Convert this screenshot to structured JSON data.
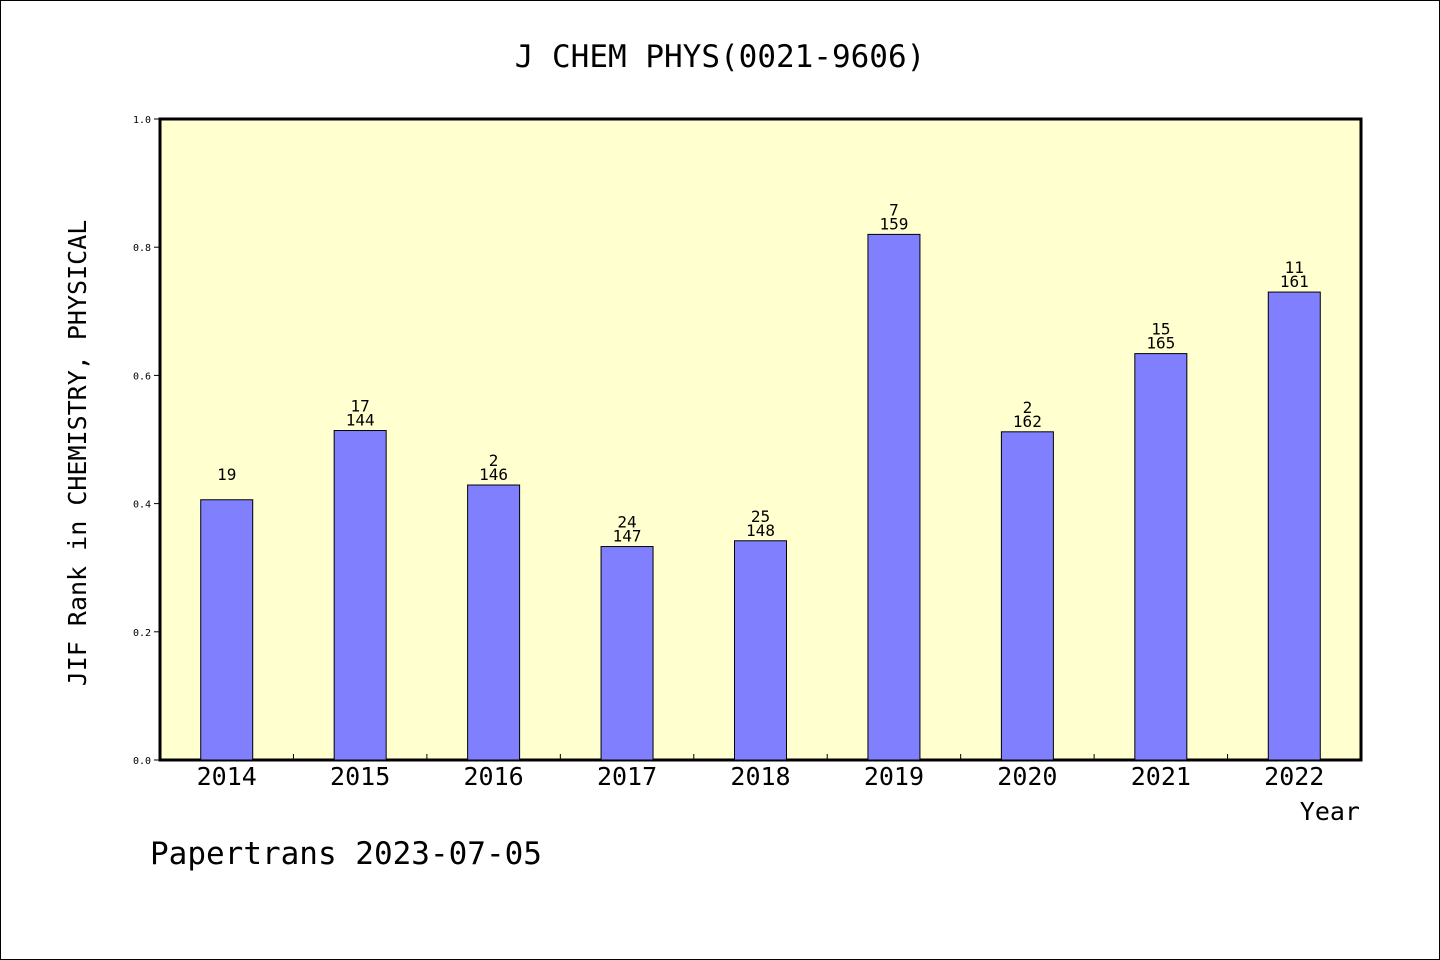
{
  "chart_data": {
    "type": "bar",
    "title": "J CHEM PHYS(0021-9606)",
    "xlabel": "Year",
    "ylabel": "JIF Rank in CHEMISTRY, PHYSICAL",
    "ylim": [
      0.0,
      1.0
    ],
    "yticks": [
      "0.0",
      "0.2",
      "0.4",
      "0.6",
      "0.8",
      "1.0"
    ],
    "categories": [
      "2014",
      "2015",
      "2016",
      "2017",
      "2018",
      "2019",
      "2020",
      "2021",
      "2022"
    ],
    "values": [
      0.406,
      0.514,
      0.429,
      0.333,
      0.342,
      0.82,
      0.512,
      0.634,
      0.73
    ],
    "annotations": [
      {
        "rank": "19",
        "total": ""
      },
      {
        "rank": "17",
        "total": "144"
      },
      {
        "rank": "2",
        "total": "146"
      },
      {
        "rank": "24",
        "total": "147"
      },
      {
        "rank": "25",
        "total": "148"
      },
      {
        "rank": "7",
        "total": "159"
      },
      {
        "rank": "2",
        "total": "162"
      },
      {
        "rank": "15",
        "total": "165"
      },
      {
        "rank": "11",
        "total": "161"
      }
    ],
    "grid": false,
    "colors": {
      "plot_background": "#ffffd0",
      "bar": "#8080ff",
      "axis": "#000000"
    }
  },
  "footer": {
    "text": "Papertrans 2023-07-05"
  }
}
